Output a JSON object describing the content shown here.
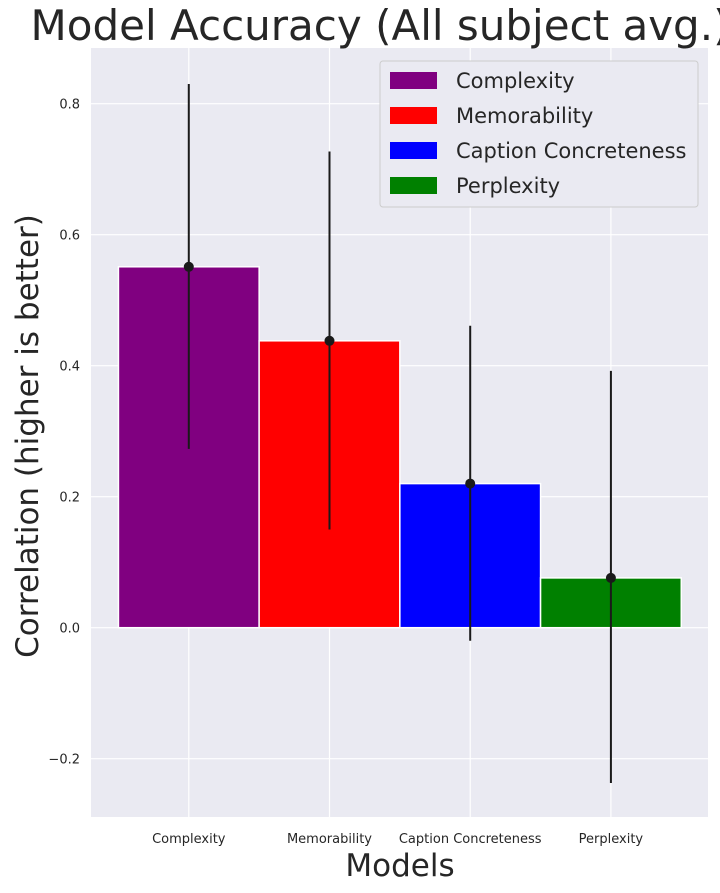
{
  "chart_data": {
    "type": "bar",
    "title": "Model Accuracy (All subject avg.)",
    "xlabel": "Models",
    "ylabel": "Correlation (higher is better)",
    "categories": [
      "Complexity",
      "Memorability",
      "Caption Concreteness",
      "Perplexity"
    ],
    "values": [
      0.551,
      0.438,
      0.22,
      0.076
    ],
    "error_low": [
      0.273,
      0.15,
      -0.02,
      -0.237
    ],
    "error_high": [
      0.83,
      0.727,
      0.461,
      0.392
    ],
    "colors": [
      "#800080",
      "#ff0000",
      "#0000ff",
      "#008000"
    ],
    "legend": [
      "Complexity",
      "Memorability",
      "Caption Concreteness",
      "Perplexity"
    ],
    "legend_placement": "top-right",
    "ylim": [
      -0.289,
      0.885
    ],
    "xlim": [
      -0.695,
      3.69
    ],
    "yticks": [
      -0.2,
      0.0,
      0.2,
      0.4,
      0.6,
      0.8
    ],
    "ytick_labels": [
      "−0.2",
      "0.0",
      "0.2",
      "0.4",
      "0.6",
      "0.8"
    ],
    "grid": true,
    "background": "#eaeaf2"
  }
}
